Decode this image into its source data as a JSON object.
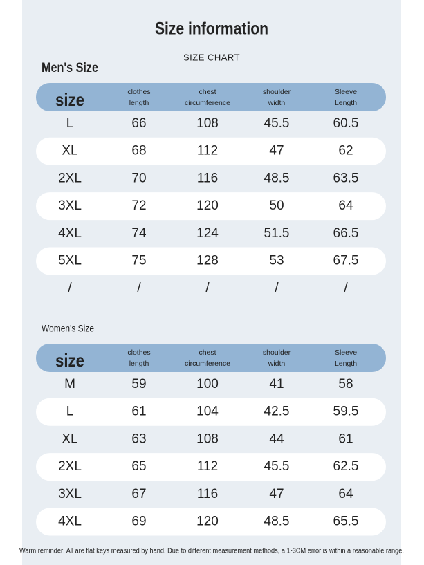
{
  "header": {
    "title": "Size information",
    "subtitle": "SIZE CHART"
  },
  "men": {
    "title": "Men's Size",
    "table": {
      "columns": [
        [
          "size"
        ],
        [
          "clothes",
          "length"
        ],
        [
          "chest",
          "circumference"
        ],
        [
          "shoulder",
          "width"
        ],
        [
          "Sleeve",
          "Length"
        ]
      ],
      "rows": [
        [
          "L",
          "66",
          "108",
          "45.5",
          "60.5"
        ],
        [
          "XL",
          "68",
          "112",
          "47",
          "62"
        ],
        [
          "2XL",
          "70",
          "116",
          "48.5",
          "63.5"
        ],
        [
          "3XL",
          "72",
          "120",
          "50",
          "64"
        ],
        [
          "4XL",
          "74",
          "124",
          "51.5",
          "66.5"
        ],
        [
          "5XL",
          "75",
          "128",
          "53",
          "67.5"
        ],
        [
          "/",
          "/",
          "/",
          "/",
          "/"
        ]
      ]
    }
  },
  "women": {
    "title": "Women's Size",
    "table": {
      "columns": [
        [
          "size"
        ],
        [
          "clothes",
          "length"
        ],
        [
          "chest",
          "circumference"
        ],
        [
          "shoulder",
          "width"
        ],
        [
          "Sleeve",
          "Length"
        ]
      ],
      "rows": [
        [
          "M",
          "59",
          "100",
          "41",
          "58"
        ],
        [
          "L",
          "61",
          "104",
          "42.5",
          "59.5"
        ],
        [
          "XL",
          "63",
          "108",
          "44",
          "61"
        ],
        [
          "2XL",
          "65",
          "112",
          "45.5",
          "62.5"
        ],
        [
          "3XL",
          "67",
          "116",
          "47",
          "64"
        ],
        [
          "4XL",
          "69",
          "120",
          "48.5",
          "65.5"
        ]
      ]
    }
  },
  "footer": {
    "note": "Warm reminder: All are flat keys measured by hand. Due to different measurement methods, a 1-3CM error is within a reasonable range."
  }
}
